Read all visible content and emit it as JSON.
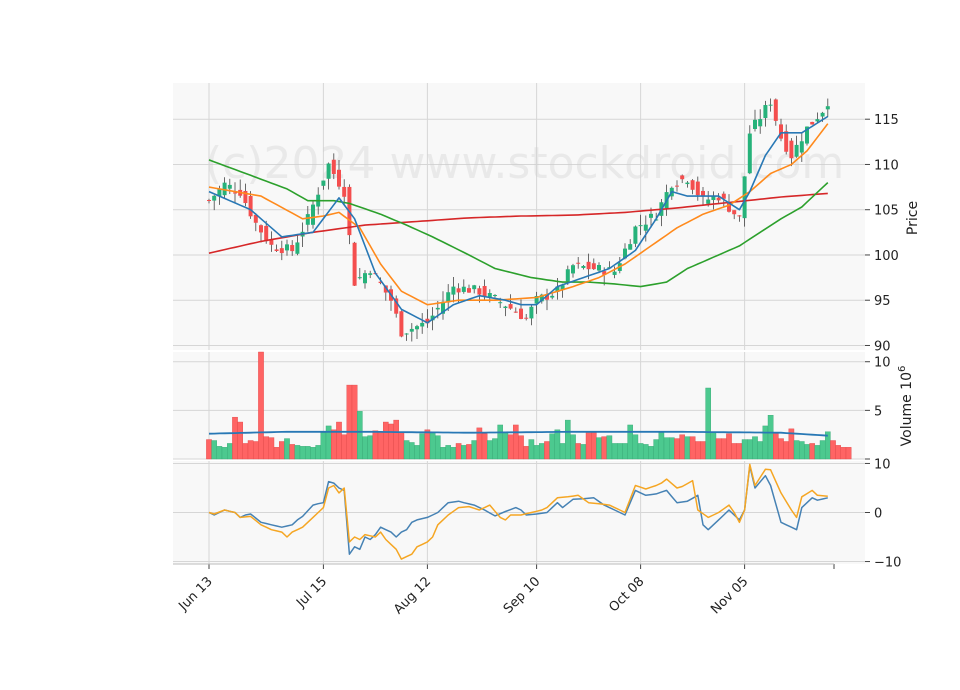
{
  "chart_data": {
    "type": "candlestick",
    "watermark": "(c)2024 www.stockdroid.com",
    "x_tick_labels": [
      "Jun 13",
      "Jul 15",
      "Aug 12",
      "Sep 10",
      "Oct 08",
      "Nov 05"
    ],
    "x_tick_indices": [
      0,
      22,
      42,
      63,
      83,
      103
    ],
    "colors": {
      "up": "#26b27a",
      "down": "#f44e4e",
      "ma_fast": "#2878b5",
      "ma_mid": "#ff8a1c",
      "ma_slow": "#2ca02c",
      "ma_long": "#d62728",
      "vol_ma": "#2878b5",
      "osc_a": "#4682b4",
      "osc_b": "#f5a623"
    },
    "price_panel": {
      "ylabel": "Price",
      "ylim": [
        89.5,
        119
      ],
      "yticks": [
        90,
        95,
        100,
        105,
        110,
        115
      ],
      "close_anchors": [
        [
          0,
          106
        ],
        [
          3,
          107.8
        ],
        [
          6,
          107
        ],
        [
          9,
          103.5
        ],
        [
          12,
          101
        ],
        [
          16,
          100.5
        ],
        [
          19,
          104
        ],
        [
          23,
          110
        ],
        [
          26,
          107
        ],
        [
          28,
          97
        ],
        [
          31,
          98.5
        ],
        [
          35,
          95
        ],
        [
          37,
          91.5
        ],
        [
          42,
          92.5
        ],
        [
          47,
          96.5
        ],
        [
          52,
          96
        ],
        [
          57,
          94.5
        ],
        [
          61,
          93
        ],
        [
          63,
          95
        ],
        [
          67,
          96
        ],
        [
          70,
          98.8
        ],
        [
          74,
          98.5
        ],
        [
          78,
          98.2
        ],
        [
          82,
          103
        ],
        [
          86,
          104.5
        ],
        [
          89,
          108
        ],
        [
          92,
          108.5
        ],
        [
          95,
          106
        ],
        [
          98,
          106.5
        ],
        [
          102,
          104
        ],
        [
          104,
          113.5
        ],
        [
          108,
          117
        ],
        [
          110,
          113
        ],
        [
          112,
          111
        ],
        [
          115,
          114
        ],
        [
          118,
          116
        ],
        [
          119,
          117
        ]
      ],
      "ma_fast": [
        [
          0,
          107
        ],
        [
          8,
          105
        ],
        [
          14,
          102
        ],
        [
          20,
          102.5
        ],
        [
          25,
          106.3
        ],
        [
          28,
          104
        ],
        [
          32,
          98
        ],
        [
          37,
          94
        ],
        [
          42,
          92.5
        ],
        [
          47,
          94.5
        ],
        [
          52,
          95.5
        ],
        [
          57,
          95
        ],
        [
          60,
          94.5
        ],
        [
          63,
          94.5
        ],
        [
          67,
          96.5
        ],
        [
          72,
          97.5
        ],
        [
          77,
          98.5
        ],
        [
          82,
          100.5
        ],
        [
          86,
          104
        ],
        [
          89,
          107
        ],
        [
          92,
          106.5
        ],
        [
          98,
          106.5
        ],
        [
          102,
          105
        ],
        [
          104,
          107
        ],
        [
          107,
          111
        ],
        [
          110,
          113.5
        ],
        [
          114,
          113.5
        ],
        [
          119,
          115.3
        ]
      ],
      "ma_mid": [
        [
          0,
          107.5
        ],
        [
          10,
          106.5
        ],
        [
          18,
          104
        ],
        [
          22,
          104.3
        ],
        [
          25,
          104.7
        ],
        [
          29,
          103
        ],
        [
          33,
          99
        ],
        [
          37,
          96
        ],
        [
          42,
          94.5
        ],
        [
          48,
          95
        ],
        [
          55,
          95
        ],
        [
          63,
          95.3
        ],
        [
          70,
          96.5
        ],
        [
          75,
          97.5
        ],
        [
          80,
          99
        ],
        [
          85,
          101
        ],
        [
          90,
          103
        ],
        [
          95,
          104.5
        ],
        [
          100,
          105.5
        ],
        [
          104,
          107
        ],
        [
          108,
          109
        ],
        [
          112,
          110
        ],
        [
          115,
          111.5
        ],
        [
          119,
          114.5
        ]
      ],
      "ma_slow": [
        [
          0,
          110.5
        ],
        [
          8,
          108.8
        ],
        [
          15,
          107.3
        ],
        [
          19,
          106
        ],
        [
          24,
          106
        ],
        [
          27,
          105.7
        ],
        [
          33,
          104.5
        ],
        [
          38,
          103.3
        ],
        [
          43,
          102
        ],
        [
          50,
          100
        ],
        [
          55,
          98.5
        ],
        [
          62,
          97.5
        ],
        [
          68,
          97
        ],
        [
          73,
          97
        ],
        [
          78,
          96.8
        ],
        [
          83,
          96.5
        ],
        [
          88,
          97
        ],
        [
          92,
          98.5
        ],
        [
          98,
          100
        ],
        [
          102,
          101
        ],
        [
          106,
          102.5
        ],
        [
          110,
          104
        ],
        [
          114,
          105.3
        ],
        [
          119,
          108
        ]
      ],
      "ma_long": [
        [
          0,
          100.2
        ],
        [
          10,
          101.5
        ],
        [
          20,
          102.5
        ],
        [
          30,
          103.3
        ],
        [
          40,
          103.7
        ],
        [
          50,
          104.1
        ],
        [
          60,
          104.3
        ],
        [
          70,
          104.4
        ],
        [
          80,
          104.7
        ],
        [
          90,
          105.2
        ],
        [
          100,
          105.8
        ],
        [
          110,
          106.4
        ],
        [
          119,
          106.8
        ]
      ]
    },
    "volume_panel": {
      "ylabel": "Volume  10^6",
      "ylim": [
        0,
        11
      ],
      "yticks": [
        0,
        5,
        10
      ],
      "ytick_labels": [
        "",
        "5",
        "10"
      ],
      "values": [
        2.0,
        1.9,
        1.3,
        1.2,
        1.6,
        4.3,
        3.8,
        1.6,
        1.9,
        1.8,
        11.0,
        2.3,
        2.2,
        1.2,
        1.8,
        2.1,
        1.5,
        1.4,
        1.3,
        1.3,
        1.2,
        1.4,
        2.7,
        3.4,
        3.0,
        3.8,
        2.5,
        7.6,
        7.6,
        4.9,
        2.3,
        2.4,
        2.9,
        2.8,
        3.8,
        3.6,
        4.0,
        2.7,
        1.9,
        1.7,
        1.4,
        2.6,
        3.0,
        2.8,
        2.4,
        1.2,
        1.4,
        1.2,
        1.6,
        1.4,
        1.5,
        1.9,
        3.2,
        2.6,
        1.9,
        2.1,
        3.5,
        2.7,
        2.5,
        3.5,
        2.4,
        1.3,
        2.0,
        1.4,
        1.6,
        1.8,
        2.6,
        3.0,
        1.6,
        4.0,
        2.5,
        1.6,
        1.5,
        2.8,
        2.7,
        2.2,
        2.3,
        2.4,
        1.6,
        1.6,
        1.6,
        3.5,
        2.5,
        1.6,
        1.5,
        1.3,
        2.0,
        2.7,
        2.2,
        2.2,
        2.1,
        2.5,
        2.3,
        2.3,
        1.8,
        1.8,
        7.3,
        2.7,
        2.1,
        2.1,
        2.6,
        1.6,
        1.6,
        2.0,
        2.0,
        2.3,
        1.8,
        3.4,
        4.5,
        2.7,
        2.1,
        1.8,
        3.1,
        1.9,
        1.8,
        1.5,
        1.6,
        1.4,
        1.9,
        2.8,
        1.9,
        1.4,
        1.2,
        1.2
      ],
      "ma_level": [
        [
          0,
          2.6
        ],
        [
          15,
          2.8
        ],
        [
          30,
          2.8
        ],
        [
          50,
          2.7
        ],
        [
          70,
          2.8
        ],
        [
          90,
          2.8
        ],
        [
          110,
          2.7
        ],
        [
          119,
          2.4
        ]
      ]
    },
    "oscillator_panel": {
      "ylim": [
        -10.5,
        10.5
      ],
      "yticks": [
        -10,
        0,
        10
      ],
      "series_a": [
        [
          0,
          0
        ],
        [
          1,
          -0.5
        ],
        [
          3,
          0.5
        ],
        [
          5,
          0
        ],
        [
          6,
          -1
        ],
        [
          7,
          -0.5
        ],
        [
          8,
          -0.3
        ],
        [
          10,
          -2
        ],
        [
          12,
          -2.5
        ],
        [
          14,
          -3
        ],
        [
          16,
          -2.5
        ],
        [
          17,
          -1.5
        ],
        [
          18,
          -0.8
        ],
        [
          20,
          1.5
        ],
        [
          21,
          1.8
        ],
        [
          22,
          2
        ],
        [
          23,
          6.3
        ],
        [
          24,
          6
        ],
        [
          25,
          5
        ],
        [
          26,
          4.5
        ],
        [
          27,
          -8.5
        ],
        [
          28,
          -7
        ],
        [
          29,
          -7.5
        ],
        [
          30,
          -5
        ],
        [
          31,
          -5.5
        ],
        [
          32,
          -4.5
        ],
        [
          33,
          -3
        ],
        [
          34,
          -3.5
        ],
        [
          35,
          -4
        ],
        [
          36,
          -5
        ],
        [
          37,
          -4
        ],
        [
          38,
          -3.5
        ],
        [
          39,
          -2
        ],
        [
          40,
          -1.5
        ],
        [
          42,
          -1
        ],
        [
          44,
          0
        ],
        [
          46,
          2
        ],
        [
          48,
          2.3
        ],
        [
          49,
          2
        ],
        [
          51,
          1.5
        ],
        [
          53,
          0.5
        ],
        [
          55,
          -0.7
        ],
        [
          57,
          0.2
        ],
        [
          59,
          1
        ],
        [
          60,
          0.5
        ],
        [
          61,
          -0.5
        ],
        [
          63,
          -0.3
        ],
        [
          65,
          0
        ],
        [
          67,
          2
        ],
        [
          68,
          1
        ],
        [
          70,
          2.7
        ],
        [
          72,
          2.8
        ],
        [
          74,
          3
        ],
        [
          76,
          1.5
        ],
        [
          78,
          0.5
        ],
        [
          80,
          -0.5
        ],
        [
          82,
          4.5
        ],
        [
          84,
          3.5
        ],
        [
          86,
          3.8
        ],
        [
          88,
          4.5
        ],
        [
          90,
          2
        ],
        [
          92,
          2.3
        ],
        [
          94,
          3.5
        ],
        [
          95,
          -2.5
        ],
        [
          96,
          -3.5
        ],
        [
          98,
          -1.5
        ],
        [
          100,
          0.5
        ],
        [
          102,
          -1.5
        ],
        [
          103,
          0.5
        ],
        [
          104,
          9.5
        ],
        [
          105,
          5
        ],
        [
          107,
          7.5
        ],
        [
          108,
          5.5
        ],
        [
          110,
          -2
        ],
        [
          112,
          -3
        ],
        [
          113,
          -3.5
        ],
        [
          114,
          1
        ],
        [
          116,
          3
        ],
        [
          117,
          2.5
        ],
        [
          119,
          3
        ]
      ],
      "series_b": [
        [
          0,
          0
        ],
        [
          1,
          -0.3
        ],
        [
          3,
          0.5
        ],
        [
          5,
          0
        ],
        [
          6,
          -1
        ],
        [
          8,
          -0.8
        ],
        [
          10,
          -2.5
        ],
        [
          12,
          -3.5
        ],
        [
          14,
          -4
        ],
        [
          15,
          -5
        ],
        [
          16,
          -4
        ],
        [
          18,
          -3
        ],
        [
          20,
          -1
        ],
        [
          21,
          0
        ],
        [
          22,
          1
        ],
        [
          23,
          5
        ],
        [
          24,
          5.5
        ],
        [
          25,
          4
        ],
        [
          26,
          5
        ],
        [
          27,
          -6
        ],
        [
          28,
          -5
        ],
        [
          29,
          -5.5
        ],
        [
          30,
          -4.5
        ],
        [
          32,
          -5
        ],
        [
          33,
          -4
        ],
        [
          34,
          -5.5
        ],
        [
          36,
          -7.5
        ],
        [
          37,
          -9.5
        ],
        [
          38,
          -9
        ],
        [
          39,
          -8.5
        ],
        [
          40,
          -7
        ],
        [
          42,
          -6
        ],
        [
          43,
          -5
        ],
        [
          44,
          -2.5
        ],
        [
          46,
          -0.5
        ],
        [
          48,
          1
        ],
        [
          50,
          1.2
        ],
        [
          52,
          0.5
        ],
        [
          54,
          1.5
        ],
        [
          56,
          -1
        ],
        [
          57,
          -1.5
        ],
        [
          58,
          -0.5
        ],
        [
          60,
          -0.5
        ],
        [
          62,
          0
        ],
        [
          64,
          0.5
        ],
        [
          65,
          1
        ],
        [
          67,
          3
        ],
        [
          69,
          3.2
        ],
        [
          71,
          3.5
        ],
        [
          73,
          2
        ],
        [
          75,
          1.8
        ],
        [
          77,
          1.5
        ],
        [
          80,
          0
        ],
        [
          82,
          5.5
        ],
        [
          84,
          4.8
        ],
        [
          86,
          5.5
        ],
        [
          87,
          6
        ],
        [
          88,
          6.8
        ],
        [
          90,
          5
        ],
        [
          91,
          5.3
        ],
        [
          93,
          6.5
        ],
        [
          94,
          0.5
        ],
        [
          96,
          -1
        ],
        [
          98,
          0
        ],
        [
          100,
          1.5
        ],
        [
          101,
          0
        ],
        [
          102,
          -2
        ],
        [
          103,
          0.5
        ],
        [
          104,
          9.8
        ],
        [
          105,
          5.5
        ],
        [
          107,
          8.8
        ],
        [
          108,
          8.7
        ],
        [
          110,
          4
        ],
        [
          112,
          0.5
        ],
        [
          113,
          -1
        ],
        [
          114,
          3.2
        ],
        [
          116,
          4.5
        ],
        [
          117,
          3.5
        ],
        [
          119,
          3.3
        ]
      ]
    }
  }
}
